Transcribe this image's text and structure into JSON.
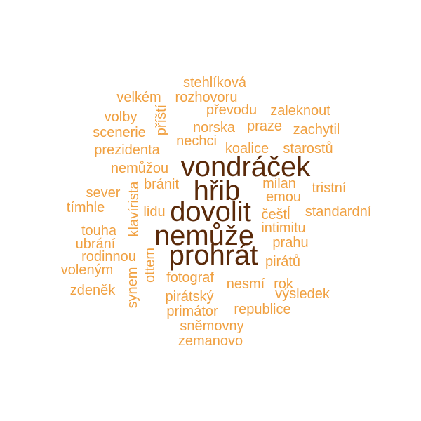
{
  "palette": {
    "dark": "#5a2a0a",
    "light": "#f0a040"
  },
  "words": [
    {
      "text": "stehlíková",
      "tone": "light"
    },
    {
      "text": "velkém",
      "tone": "light"
    },
    {
      "text": "rozhovoru",
      "tone": "light"
    },
    {
      "text": "převodu",
      "tone": "light"
    },
    {
      "text": "zaleknout",
      "tone": "light"
    },
    {
      "text": "příští",
      "tone": "light"
    },
    {
      "text": "volby",
      "tone": "light"
    },
    {
      "text": "norska",
      "tone": "light"
    },
    {
      "text": "praze",
      "tone": "light"
    },
    {
      "text": "zachytil",
      "tone": "light"
    },
    {
      "text": "scenerie",
      "tone": "light"
    },
    {
      "text": "nechci",
      "tone": "light"
    },
    {
      "text": "prezidenta",
      "tone": "light"
    },
    {
      "text": "koalice",
      "tone": "light"
    },
    {
      "text": "starostů",
      "tone": "light"
    },
    {
      "text": "nemůžou",
      "tone": "light"
    },
    {
      "text": "vondráček",
      "tone": "dark"
    },
    {
      "text": "hřib",
      "tone": "dark"
    },
    {
      "text": "bránit",
      "tone": "light"
    },
    {
      "text": "milan",
      "tone": "light"
    },
    {
      "text": "tristní",
      "tone": "light"
    },
    {
      "text": "sever",
      "tone": "light"
    },
    {
      "text": "emou",
      "tone": "light"
    },
    {
      "text": "tímhle",
      "tone": "light"
    },
    {
      "text": "klavírista",
      "tone": "light"
    },
    {
      "text": "lidu",
      "tone": "light"
    },
    {
      "text": "dovolit",
      "tone": "dark"
    },
    {
      "text": "češtĺ",
      "tone": "light"
    },
    {
      "text": "standardní",
      "tone": "light"
    },
    {
      "text": "touha",
      "tone": "light"
    },
    {
      "text": "nemůže",
      "tone": "dark"
    },
    {
      "text": "intimitu",
      "tone": "light"
    },
    {
      "text": "ubrání",
      "tone": "light"
    },
    {
      "text": "prahu",
      "tone": "light"
    },
    {
      "text": "rodinnou",
      "tone": "light"
    },
    {
      "text": "prohrát",
      "tone": "dark"
    },
    {
      "text": "pirátů",
      "tone": "light"
    },
    {
      "text": "voleným",
      "tone": "light"
    },
    {
      "text": "ottem",
      "tone": "light"
    },
    {
      "text": "fotograf",
      "tone": "light"
    },
    {
      "text": "synem",
      "tone": "light"
    },
    {
      "text": "nesmí",
      "tone": "light"
    },
    {
      "text": "rok",
      "tone": "light"
    },
    {
      "text": "zdeněk",
      "tone": "light"
    },
    {
      "text": "pirátský",
      "tone": "light"
    },
    {
      "text": "výsledek",
      "tone": "light"
    },
    {
      "text": "primátor",
      "tone": "light"
    },
    {
      "text": "republice",
      "tone": "light"
    },
    {
      "text": "sněmovny",
      "tone": "light"
    },
    {
      "text": "zemanovo",
      "tone": "light"
    }
  ]
}
